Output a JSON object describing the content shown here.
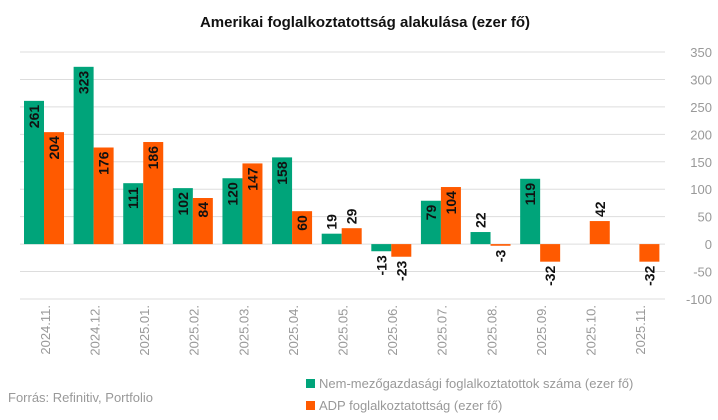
{
  "chart_data": {
    "type": "bar",
    "title": "Amerikai foglalkoztatottság alakulása (ezer fő)",
    "categories": [
      "2024.11.",
      "2024.12.",
      "2025.01.",
      "2025.02.",
      "2025.03.",
      "2025.04.",
      "2025.05.",
      "2025.06.",
      "2025.07.",
      "2025.08.",
      "2025.09.",
      "2025.10.",
      "2025.11."
    ],
    "series": [
      {
        "name": "Nem-mezőgazdasági foglalkoztatottok száma (ezer fő)",
        "color": "#00a47a",
        "values": [
          261,
          323,
          111,
          102,
          120,
          158,
          19,
          -13,
          79,
          22,
          119,
          null,
          null
        ]
      },
      {
        "name": "ADP foglalkoztatottság (ezer fő)",
        "color": "#ff5a00",
        "values": [
          204,
          176,
          186,
          84,
          147,
          60,
          29,
          -23,
          104,
          -3,
          -32,
          42,
          -32
        ]
      }
    ],
    "ylim": [
      -100,
      350
    ],
    "yticks": [
      -100,
      -50,
      0,
      50,
      100,
      150,
      200,
      250,
      300,
      350
    ],
    "xlabel": "",
    "ylabel": "",
    "grid": true,
    "legend": "bottom-right"
  },
  "source": "Forrás: Refinitiv, Portfolio"
}
